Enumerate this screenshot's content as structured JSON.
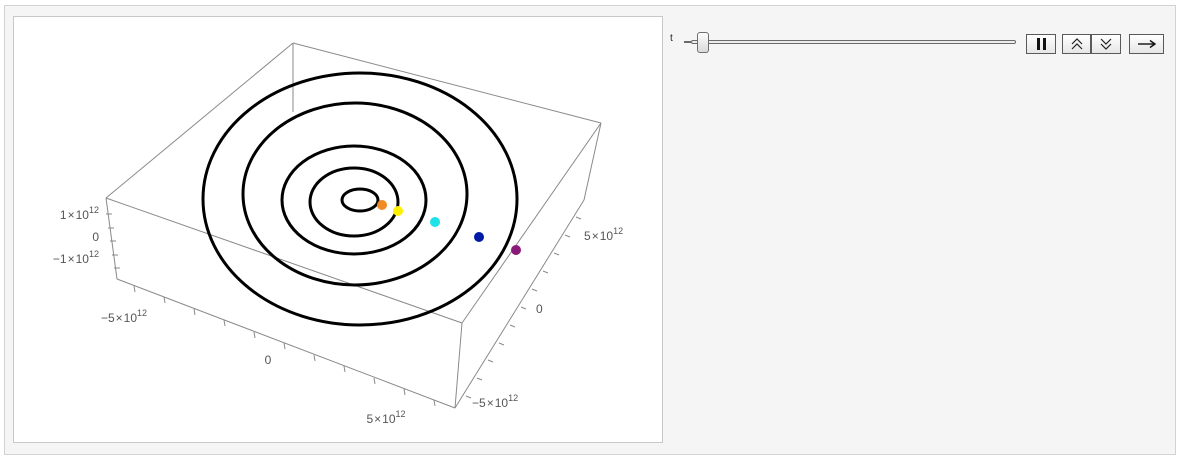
{
  "controls": {
    "slider_label": "t",
    "slider_value": 0.02,
    "pause_icon": "pause-icon",
    "faster_icon": "double-chevron-up-icon",
    "slower_icon": "double-chevron-down-icon",
    "direction_icon": "right-arrow-icon"
  },
  "plot": {
    "z_ticks": [
      {
        "mant": "1",
        "op": "×",
        "base": "10",
        "exp": "12"
      },
      {
        "mant": "0"
      },
      {
        "mant": "−1",
        "op": "×",
        "base": "10",
        "exp": "12"
      }
    ],
    "x_ticks": [
      {
        "mant": "−5",
        "op": "×",
        "base": "10",
        "exp": "12"
      },
      {
        "mant": "0"
      },
      {
        "mant": "5",
        "op": "×",
        "base": "10",
        "exp": "12"
      }
    ],
    "y_ticks": [
      {
        "mant": "5",
        "op": "×",
        "base": "10",
        "exp": "12"
      },
      {
        "mant": "0"
      },
      {
        "mant": "−5",
        "op": "×",
        "base": "10",
        "exp": "12"
      }
    ],
    "orbit_color": "#000000",
    "box_color": "#8a8a8a",
    "bodies": [
      {
        "name": "orange",
        "color": "#f08a24"
      },
      {
        "name": "yellow",
        "color": "#fff000"
      },
      {
        "name": "cyan",
        "color": "#20e0e8"
      },
      {
        "name": "blue",
        "color": "#001aa8"
      },
      {
        "name": "purple",
        "color": "#8a1a78"
      }
    ]
  }
}
